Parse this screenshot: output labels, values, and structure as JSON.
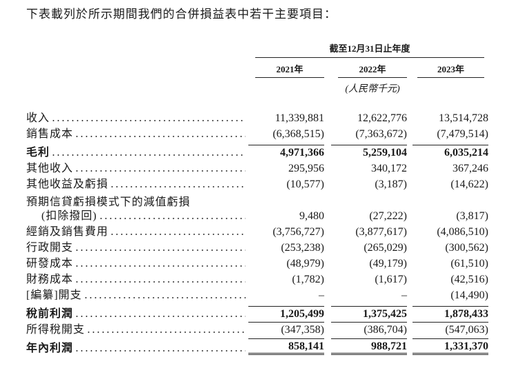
{
  "intro": "下表載列於所示期間我們的合併損益表中若干主要項目：",
  "table": {
    "period_header": "截至12月31日止年度",
    "columns": [
      "2021年",
      "2022年",
      "2023年"
    ],
    "unit": "(人民幣千元)",
    "rows": [
      {
        "label": "收入",
        "values": [
          "11,339,881",
          "12,622,776",
          "13,514,728"
        ]
      },
      {
        "label": "銷售成本",
        "values": [
          "(6,368,515)",
          "(7,363,672)",
          "(7,479,514)"
        ]
      },
      {
        "label": "毛利",
        "bold": true,
        "rule_above": true,
        "values": [
          "4,971,366",
          "5,259,104",
          "6,035,214"
        ]
      },
      {
        "label": "其他收入",
        "values": [
          "295,956",
          "340,172",
          "367,246"
        ]
      },
      {
        "label": "其他收益及虧損",
        "values": [
          "(10,577)",
          "(3,187)",
          "(14,622)"
        ]
      },
      {
        "label": "預期信貸虧損模式下的減值虧損",
        "label_cont": "(扣除撥回)",
        "values": [
          "9,480",
          "(27,222)",
          "(3,817)"
        ]
      },
      {
        "label": "經銷及銷售費用",
        "values": [
          "(3,756,727)",
          "(3,877,617)",
          "(4,086,510)"
        ]
      },
      {
        "label": "行政開支",
        "values": [
          "(253,238)",
          "(265,029)",
          "(300,562)"
        ]
      },
      {
        "label": "研發成本",
        "values": [
          "(48,979)",
          "(49,179)",
          "(61,510)"
        ]
      },
      {
        "label": "財務成本",
        "values": [
          "(1,782)",
          "(1,617)",
          "(42,516)"
        ]
      },
      {
        "label": "[編纂]開支",
        "values": [
          "–",
          "–",
          "(14,490)"
        ]
      },
      {
        "label": "稅前利潤",
        "bold": true,
        "rule_above": true,
        "values": [
          "1,205,499",
          "1,375,425",
          "1,878,433"
        ]
      },
      {
        "label": "所得稅開支",
        "rule_above": true,
        "values": [
          "(347,358)",
          "(386,704)",
          "(547,063)"
        ]
      },
      {
        "label": "年內利潤",
        "bold": true,
        "rule_above": true,
        "double_rule_below": true,
        "values": [
          "858,141",
          "988,721",
          "1,331,370"
        ]
      }
    ]
  }
}
